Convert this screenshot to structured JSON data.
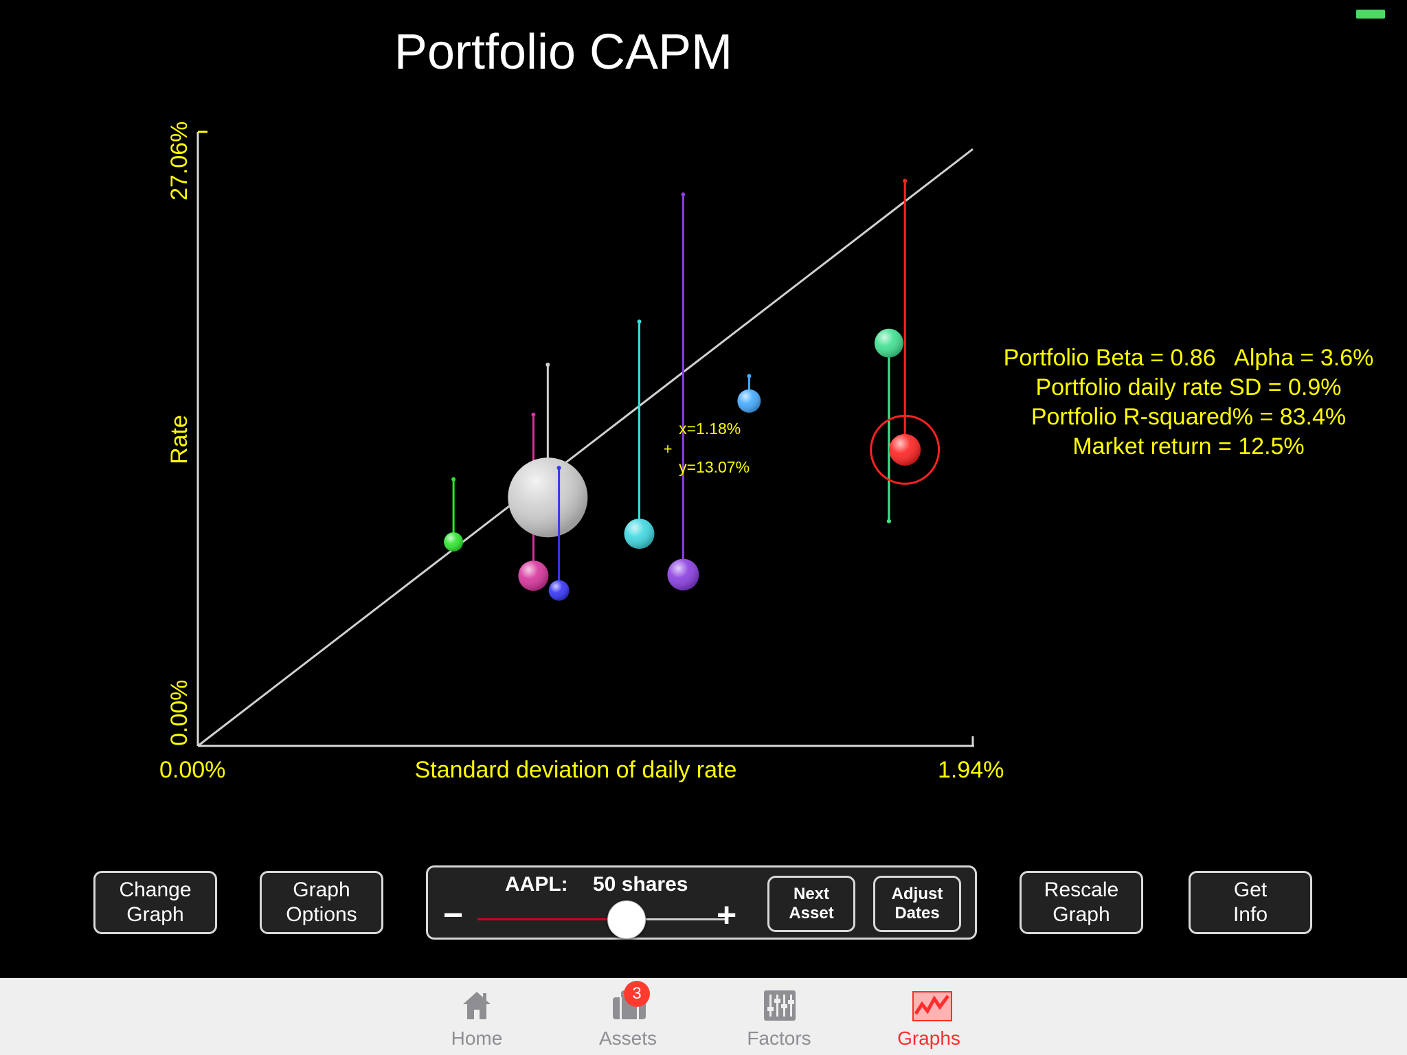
{
  "title": "Portfolio CAPM",
  "battery_color": "#4cd964",
  "chart_data": {
    "type": "scatter",
    "title": "Portfolio CAPM",
    "xlabel": "Standard deviation of daily rate",
    "ylabel": "Rate",
    "x_min_label": "0.00%",
    "x_max_label": "1.94%",
    "y_min_label": "0.00%",
    "y_max_label": "27.06%",
    "xlim": [
      0,
      1.94
    ],
    "ylim": [
      0,
      27.06
    ],
    "market_line": {
      "x": [
        0,
        1.94
      ],
      "y": [
        0,
        26.3
      ]
    },
    "cursor": {
      "x_label": "x=1.18%",
      "y_label": "y=13.07%",
      "x": 1.18,
      "y": 13.07
    },
    "points": [
      {
        "color": "#2ee62e",
        "x": 0.64,
        "y": 8.99,
        "top": 11.75,
        "size": 14
      },
      {
        "color": "#d6339b",
        "x": 0.84,
        "y": 7.5,
        "top": 14.6,
        "size": 22
      },
      {
        "color": "#cfcfcf",
        "x": 0.876,
        "y": 10.95,
        "top": 16.8,
        "size": 58
      },
      {
        "color": "#3434f5",
        "x": 0.904,
        "y": 6.85,
        "top": 12.25,
        "size": 15
      },
      {
        "color": "#3fd7e0",
        "x": 1.105,
        "y": 9.35,
        "top": 18.7,
        "size": 22
      },
      {
        "color": "#8a3de0",
        "x": 1.215,
        "y": 7.55,
        "top": 24.3,
        "size": 23
      },
      {
        "color": "#44aaff",
        "x": 1.38,
        "y": 15.2,
        "top": 16.3,
        "size": 17
      },
      {
        "color": "#3fe08f",
        "x": 1.73,
        "y": 17.75,
        "top": 9.9,
        "bottom": 9.9,
        "size": 21
      },
      {
        "color": "#ff2222",
        "x": 1.77,
        "y": 13.05,
        "top": 24.9,
        "size": 23,
        "selected": true
      }
    ]
  },
  "stats": {
    "line1": "Portfolio Beta = 0.86   Alpha = 3.6%",
    "line2": "Portfolio daily rate SD = 0.9%",
    "line3": "Portfolio R-squared% = 83.4%",
    "line4": "Market return = 12.5%"
  },
  "controls": {
    "change_graph_line1": "Change",
    "change_graph_line2": "Graph",
    "graph_options_line1": "Graph",
    "graph_options_line2": "Options",
    "asset_label": "AAPL:",
    "shares_label": "50 shares",
    "minus": "−",
    "plus": "+",
    "slider_value": 0.6,
    "next_asset_line1": "Next",
    "next_asset_line2": "Asset",
    "adjust_dates_line1": "Adjust",
    "adjust_dates_line2": "Dates",
    "rescale_line1": "Rescale",
    "rescale_line2": "Graph",
    "get_info_line1": "Get",
    "get_info_line2": "Info"
  },
  "tabbar": {
    "tabs": [
      {
        "label": "Home",
        "icon": "home-icon"
      },
      {
        "label": "Assets",
        "icon": "briefcase-icon",
        "badge": "3"
      },
      {
        "label": "Factors",
        "icon": "sliders-icon"
      },
      {
        "label": "Graphs",
        "icon": "graph-icon",
        "active": true
      }
    ],
    "active_color": "#ff2d2d"
  }
}
